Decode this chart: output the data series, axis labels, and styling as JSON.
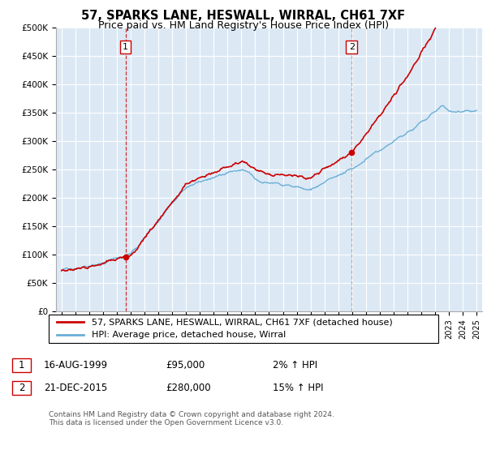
{
  "title": "57, SPARKS LANE, HESWALL, WIRRAL, CH61 7XF",
  "subtitle": "Price paid vs. HM Land Registry's House Price Index (HPI)",
  "ylim": [
    0,
    500000
  ],
  "yticks": [
    0,
    50000,
    100000,
    150000,
    200000,
    250000,
    300000,
    350000,
    400000,
    450000,
    500000
  ],
  "ytick_labels": [
    "£0",
    "£50K",
    "£100K",
    "£150K",
    "£200K",
    "£250K",
    "£300K",
    "£350K",
    "£400K",
    "£450K",
    "£500K"
  ],
  "hpi_color": "#6baed6",
  "price_color": "#cc0000",
  "sale1_dashed_color": "#cc0000",
  "sale2_dashed_color": "#aaaaaa",
  "chart_bg_color": "#dce9f5",
  "background_color": "#ffffff",
  "grid_color": "#ffffff",
  "legend_label_price": "57, SPARKS LANE, HESWALL, WIRRAL, CH61 7XF (detached house)",
  "legend_label_hpi": "HPI: Average price, detached house, Wirral",
  "sale1_date_num": 1999.62,
  "sale1_price": 95000,
  "sale1_label": "1",
  "sale2_date_num": 2015.97,
  "sale2_price": 280000,
  "sale2_label": "2",
  "table_rows": [
    {
      "num": "1",
      "date": "16-AUG-1999",
      "price": "£95,000",
      "hpi": "2% ↑ HPI"
    },
    {
      "num": "2",
      "date": "21-DEC-2015",
      "price": "£280,000",
      "hpi": "15% ↑ HPI"
    }
  ],
  "footer": "Contains HM Land Registry data © Crown copyright and database right 2024.\nThis data is licensed under the Open Government Licence v3.0.",
  "title_fontsize": 10.5,
  "subtitle_fontsize": 9,
  "tick_fontsize": 7.5,
  "legend_fontsize": 8,
  "table_fontsize": 8.5
}
